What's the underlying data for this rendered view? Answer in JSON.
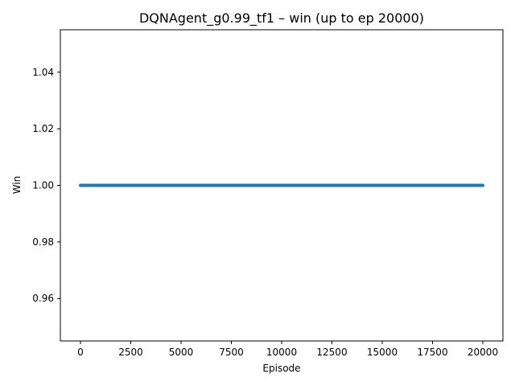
{
  "chart_data": {
    "type": "line",
    "title": "DQNAgent_g0.99_tf1 – win (up to ep 20000)",
    "xlabel": "Episode",
    "ylabel": "Win",
    "xlim": [
      -1000,
      21000
    ],
    "ylim": [
      0.945,
      1.055
    ],
    "x_ticks": [
      0,
      2500,
      5000,
      7500,
      10000,
      12500,
      15000,
      17500,
      20000
    ],
    "x_tick_labels": [
      "0",
      "2500",
      "5000",
      "7500",
      "10000",
      "12500",
      "15000",
      "17500",
      "20000"
    ],
    "y_ticks": [
      0.96,
      0.98,
      1.0,
      1.02,
      1.04
    ],
    "y_tick_labels": [
      "0.96",
      "0.98",
      "1.00",
      "1.02",
      "1.04"
    ],
    "grid": false,
    "series": [
      {
        "color": "#1f77b4",
        "x": [
          0,
          20000
        ],
        "y": [
          1.0,
          1.0
        ]
      }
    ]
  }
}
